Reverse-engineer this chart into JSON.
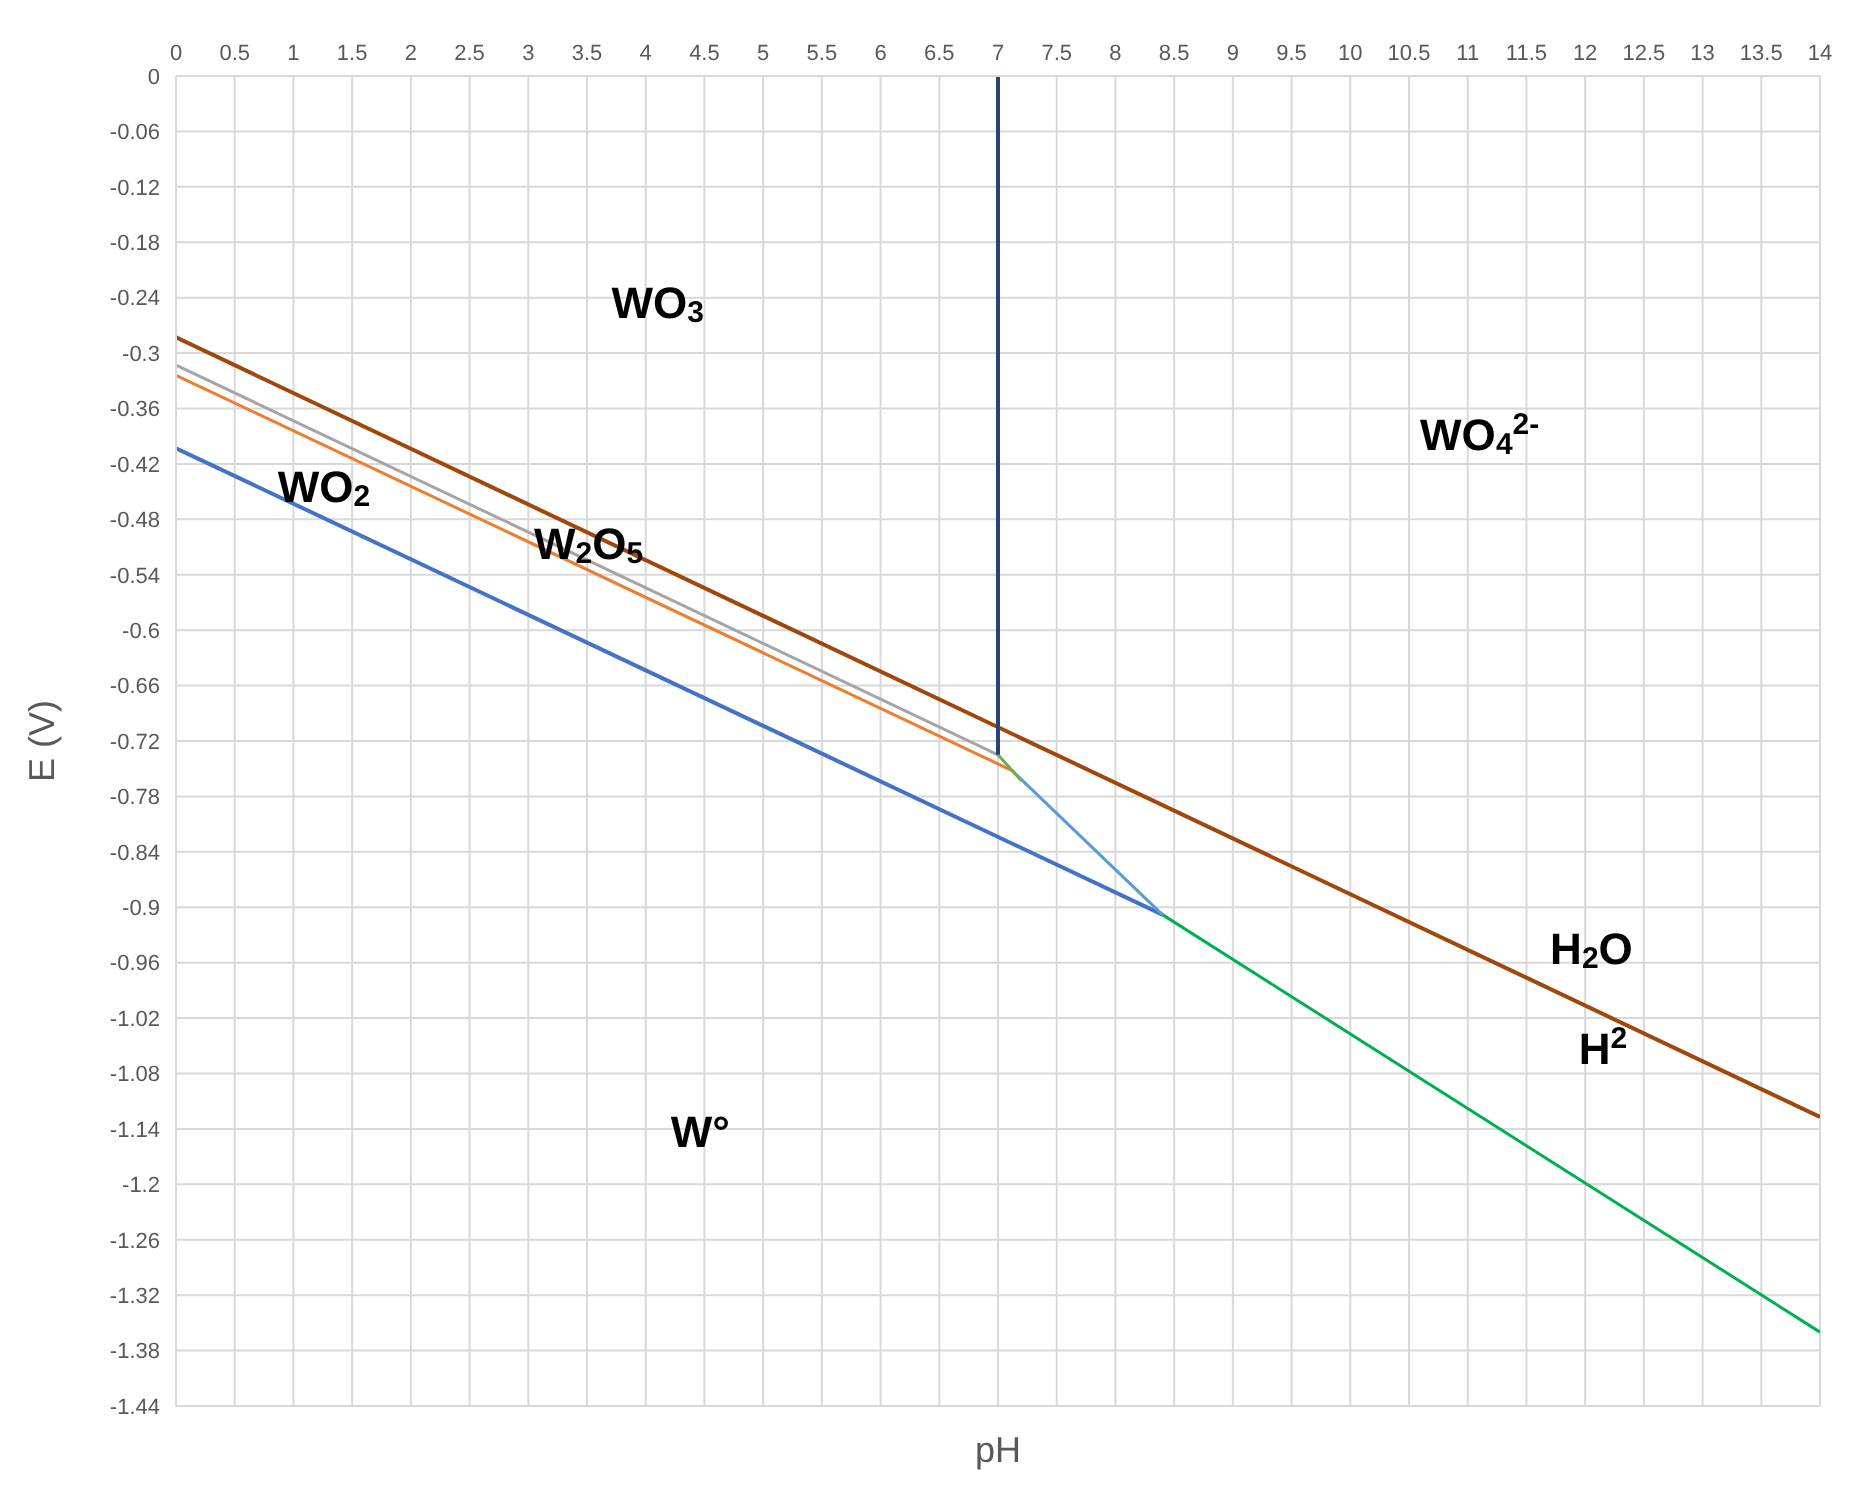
{
  "chart_data": {
    "type": "line",
    "xlabel": "pH",
    "ylabel": "E (V)",
    "grid": true,
    "marker": "none",
    "line_style": "solid",
    "xlim": [
      0,
      14
    ],
    "xticks": [
      0,
      0.5,
      1,
      1.5,
      2,
      2.5,
      3,
      3.5,
      4,
      4.5,
      5,
      5.5,
      6,
      6.5,
      7,
      7.5,
      8,
      8.5,
      9,
      9.5,
      10,
      10.5,
      11,
      11.5,
      12,
      12.5,
      13,
      13.5,
      14
    ],
    "ylim": [
      -1.44,
      0
    ],
    "yticks": [
      0,
      -0.06,
      -0.12,
      -0.18,
      -0.24,
      -0.3,
      -0.36,
      -0.42,
      -0.48,
      -0.54,
      -0.6,
      -0.66,
      -0.72,
      -0.78,
      -0.84,
      -0.9,
      -0.96,
      -1.02,
      -1.08,
      -1.14,
      -1.2,
      -1.26,
      -1.32,
      -1.38,
      -1.44
    ],
    "series": [
      {
        "color": "#9e480e",
        "x": [
          0,
          14
        ],
        "values": [
          -0.283,
          -1.127
        ]
      },
      {
        "color": "#a5a5a5",
        "x": [
          0,
          7
        ],
        "values": [
          -0.313,
          -0.735
        ]
      },
      {
        "color": "#ed7d31",
        "x": [
          0,
          7.12
        ],
        "values": [
          -0.324,
          -0.752
        ]
      },
      {
        "color": "#4472c4",
        "x": [
          0,
          8.4
        ],
        "values": [
          -0.403,
          -0.908
        ]
      },
      {
        "color": "#00b050",
        "x": [
          8.4,
          14
        ],
        "values": [
          -0.908,
          -1.36
        ]
      },
      {
        "color": "#5b9bd5",
        "x": [
          7.12,
          8.4
        ],
        "values": [
          -0.752,
          -0.908
        ]
      },
      {
        "color": "#70ad47",
        "x": [
          7,
          7.2
        ],
        "values": [
          -0.735,
          -0.763
        ]
      },
      {
        "color": "#264478",
        "x": [
          7,
          7
        ],
        "values": [
          0,
          -0.735
        ]
      }
    ],
    "annotations": [
      "WO$_{3}$",
      "WO$_{2}$",
      "W$_{2}$O$_{5}$",
      "WO$_{4}$$^{2-}$",
      "H$_{2}$O",
      "H$^{2}$",
      "W°"
    ]
  }
}
